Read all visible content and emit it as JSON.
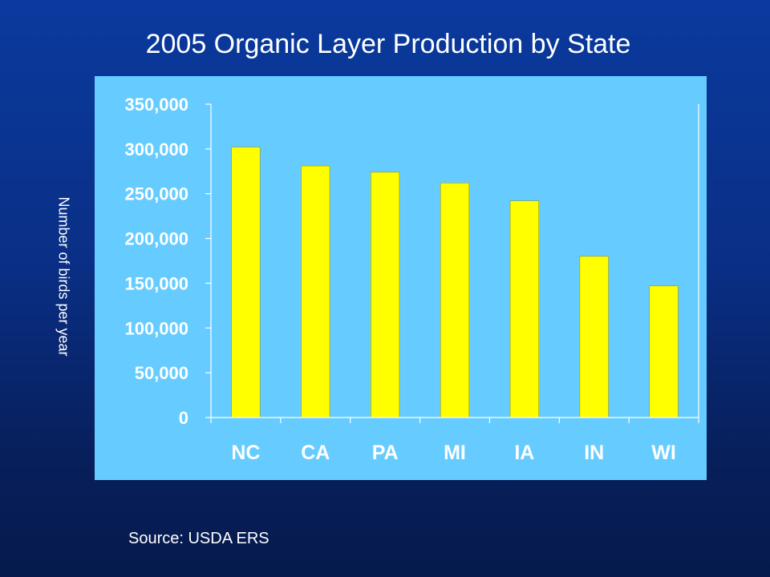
{
  "chart_data": {
    "type": "bar",
    "title": "2005 Organic Layer Production by State",
    "ylabel": "Number of birds per year",
    "xlabel": "",
    "categories": [
      "NC",
      "CA",
      "PA",
      "MI",
      "IA",
      "IN",
      "WI"
    ],
    "values": [
      302000,
      281000,
      274000,
      262000,
      242000,
      180000,
      147000
    ],
    "ylim": [
      0,
      350000
    ],
    "yticks": [
      0,
      50000,
      100000,
      150000,
      200000,
      250000,
      300000,
      350000
    ],
    "ytick_labels": [
      "0",
      "50,000",
      "100,000",
      "150,000",
      "200,000",
      "250,000",
      "300,000",
      "350,000"
    ],
    "grid": false,
    "legend": "none",
    "colors": {
      "bar": "#ffff00",
      "plot_background": "#66ccff",
      "axis": "#ffffff",
      "text": "#ffffff"
    }
  },
  "footer": {
    "source": "Source: USDA ERS"
  }
}
